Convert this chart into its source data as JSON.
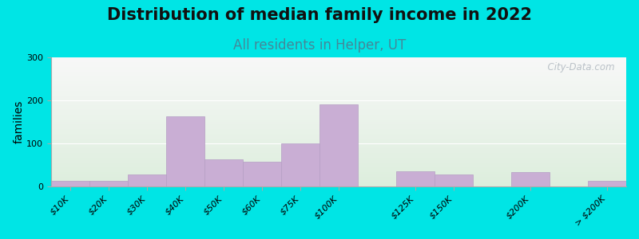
{
  "title": "Distribution of median family income in 2022",
  "subtitle": "All residents in Helper, UT",
  "ylabel": "families",
  "categories": [
    "$10K",
    "$20K",
    "$30K",
    "$40K",
    "$50K",
    "$60K",
    "$75K",
    "$100K",
    "$125K",
    "$150K",
    "$200K",
    "> $200K"
  ],
  "values": [
    13,
    13,
    28,
    163,
    63,
    58,
    100,
    190,
    35,
    28,
    33,
    13
  ],
  "bar_lefts": [
    0,
    1,
    2,
    3,
    4,
    5,
    6,
    7,
    9,
    10,
    12,
    14
  ],
  "bar_widths": [
    1,
    1,
    1,
    1,
    1,
    1,
    1,
    1,
    1,
    1,
    1,
    1
  ],
  "xlim": [
    0,
    15
  ],
  "bar_color": "#c9aed4",
  "bar_edge_color": "#b59ec4",
  "bg_outer": "#00e5e5",
  "bg_plot_top": "#ddeedd",
  "bg_plot_bottom": "#f8f8f8",
  "ylim": [
    0,
    300
  ],
  "yticks": [
    0,
    100,
    200,
    300
  ],
  "title_fontsize": 15,
  "subtitle_fontsize": 12,
  "subtitle_color": "#448899",
  "ylabel_fontsize": 10,
  "watermark": "  City-Data.com",
  "tick_label_fontsize": 8,
  "xtick_positions": [
    0.5,
    1.5,
    2.5,
    3.5,
    4.5,
    5.5,
    6.5,
    7.5,
    9.5,
    10.5,
    12.5,
    14.5
  ],
  "xtick_labels": [
    "$10K",
    "$20K",
    "$30K",
    "$40K",
    "$50K",
    "$60K",
    "$75K",
    "$100K",
    "$125K",
    "$150K",
    "$200K",
    "> $200K"
  ]
}
